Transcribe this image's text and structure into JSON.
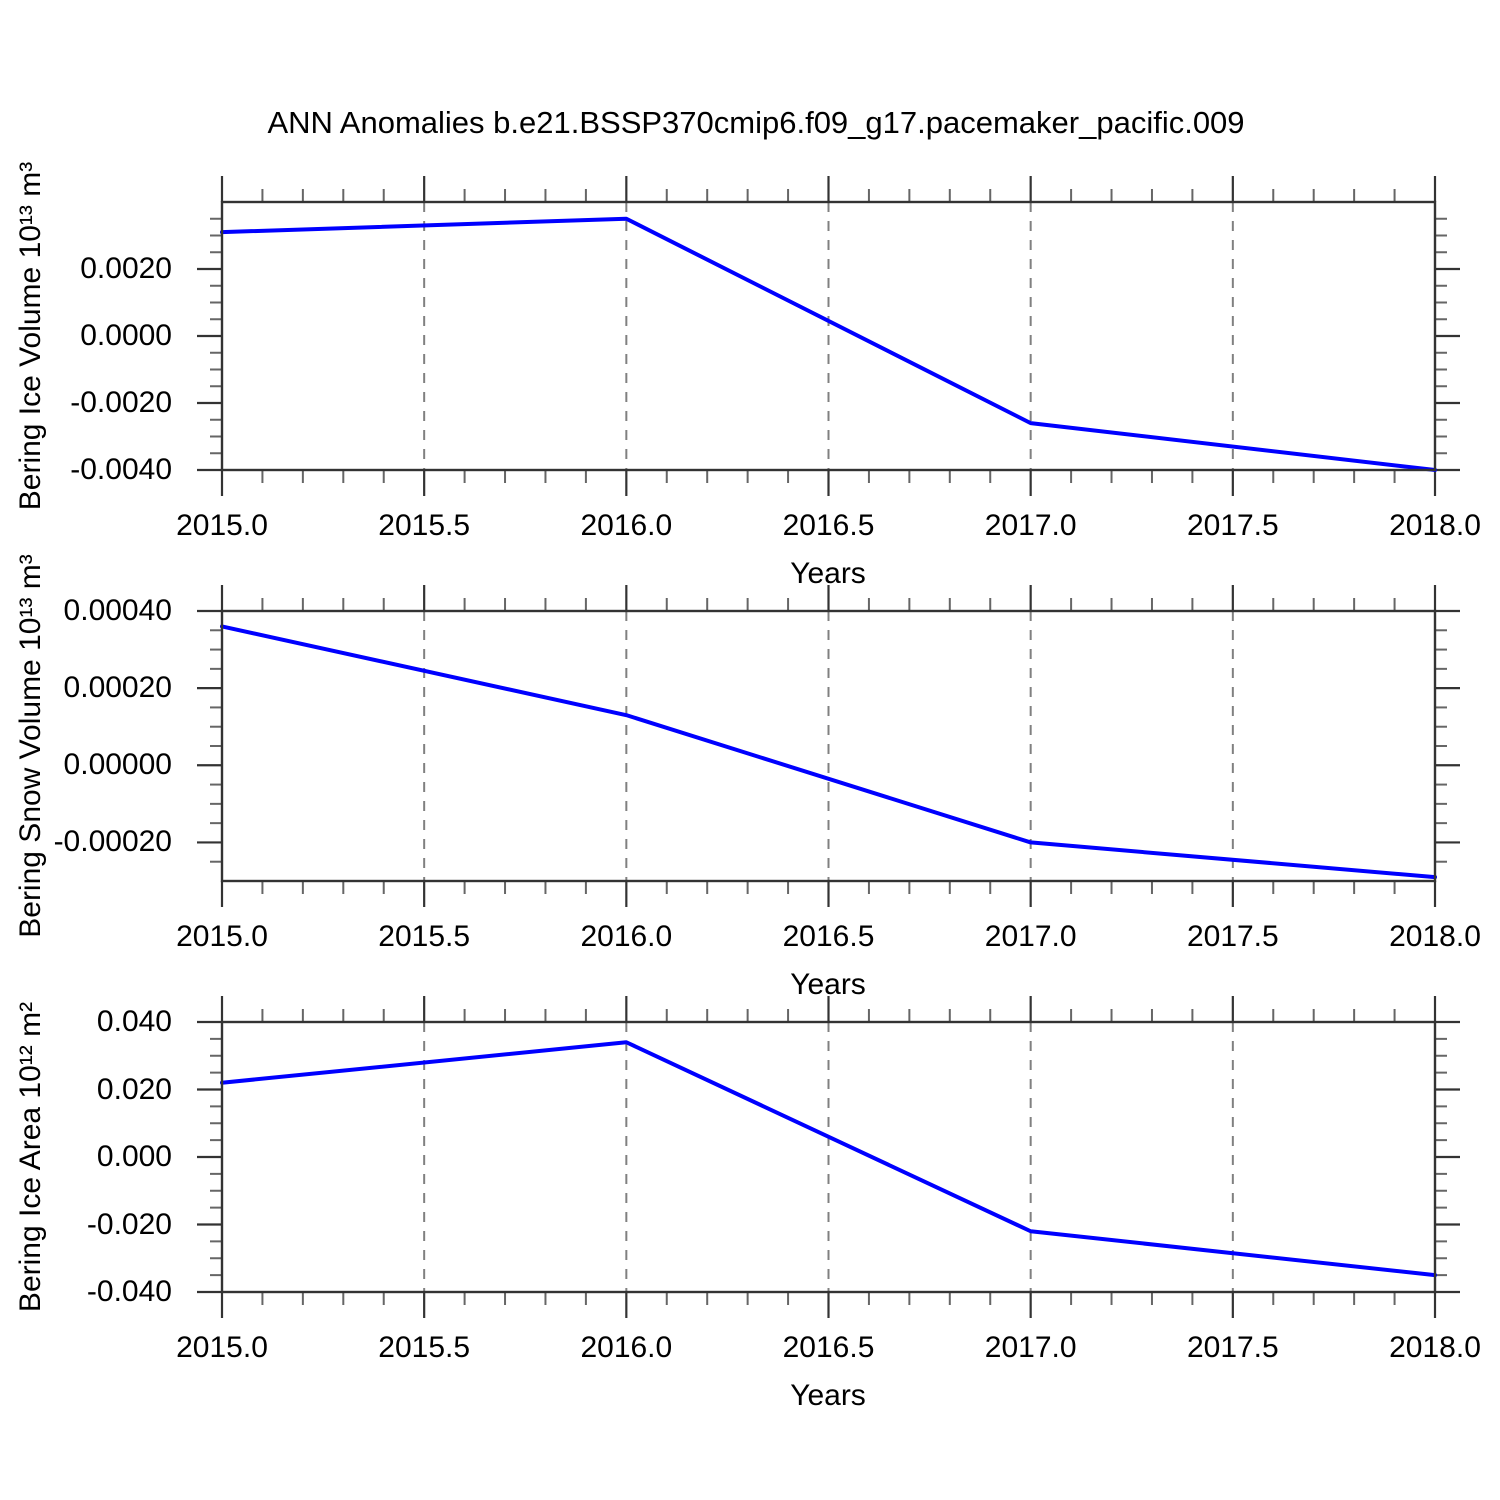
{
  "title": "ANN Anomalies b.e21.BSSP370cmip6.f09_g17.pacemaker_pacific.009",
  "line_color": "#0000ff",
  "grid_color": "#808080",
  "axis_color": "#333333",
  "chart_data": [
    {
      "type": "line",
      "ylabel": "Bering Ice Volume 10¹³ m³",
      "xlabel": "Years",
      "x": [
        2015.0,
        2016.0,
        2017.0,
        2018.0
      ],
      "y": [
        0.0031,
        0.0035,
        -0.0026,
        -0.004
      ],
      "xlim": [
        2015.0,
        2018.0
      ],
      "ylim": [
        -0.004,
        0.004
      ],
      "xticks": [
        {
          "label": "2015.0",
          "value": 2015.0
        },
        {
          "label": "2015.5",
          "value": 2015.5
        },
        {
          "label": "2016.0",
          "value": 2016.0
        },
        {
          "label": "2016.5",
          "value": 2016.5
        },
        {
          "label": "2017.0",
          "value": 2017.0
        },
        {
          "label": "2017.5",
          "value": 2017.5
        },
        {
          "label": "2018.0",
          "value": 2018.0
        }
      ],
      "yticks": [
        {
          "label": "0.0020",
          "value": 0.002
        },
        {
          "label": "0.0000",
          "value": 0.0
        },
        {
          "label": "-0.0020",
          "value": -0.002
        },
        {
          "label": "-0.0040",
          "value": -0.004
        }
      ],
      "xtick_minor_step": 0.1,
      "ytick_minor_step": 0.0005,
      "grid_x": [
        2015.5,
        2016.0,
        2016.5,
        2017.0,
        2017.5
      ],
      "grid_style": "vertical-dashed",
      "legend": "none"
    },
    {
      "type": "line",
      "ylabel": "Bering Snow Volume 10¹³ m³",
      "xlabel": "Years",
      "x": [
        2015.0,
        2016.0,
        2017.0,
        2018.0
      ],
      "y": [
        0.00036,
        0.00013,
        -0.0002,
        -0.00029
      ],
      "xlim": [
        2015.0,
        2018.0
      ],
      "ylim": [
        -0.0003,
        0.0004
      ],
      "xticks": [
        {
          "label": "2015.0",
          "value": 2015.0
        },
        {
          "label": "2015.5",
          "value": 2015.5
        },
        {
          "label": "2016.0",
          "value": 2016.0
        },
        {
          "label": "2016.5",
          "value": 2016.5
        },
        {
          "label": "2017.0",
          "value": 2017.0
        },
        {
          "label": "2017.5",
          "value": 2017.5
        },
        {
          "label": "2018.0",
          "value": 2018.0
        }
      ],
      "yticks": [
        {
          "label": "0.00040",
          "value": 0.0004
        },
        {
          "label": "0.00020",
          "value": 0.0002
        },
        {
          "label": "0.00000",
          "value": 0.0
        },
        {
          "label": "-0.00020",
          "value": -0.0002
        }
      ],
      "xtick_minor_step": 0.1,
      "ytick_minor_step": 5e-05,
      "grid_x": [
        2015.5,
        2016.0,
        2016.5,
        2017.0,
        2017.5
      ],
      "grid_style": "vertical-dashed",
      "legend": "none"
    },
    {
      "type": "line",
      "ylabel": "Bering Ice Area 10¹² m²",
      "xlabel": "Years",
      "x": [
        2015.0,
        2016.0,
        2017.0,
        2018.0
      ],
      "y": [
        0.022,
        0.034,
        -0.022,
        -0.035
      ],
      "xlim": [
        2015.0,
        2018.0
      ],
      "ylim": [
        -0.04,
        0.04
      ],
      "xticks": [
        {
          "label": "2015.0",
          "value": 2015.0
        },
        {
          "label": "2015.5",
          "value": 2015.5
        },
        {
          "label": "2016.0",
          "value": 2016.0
        },
        {
          "label": "2016.5",
          "value": 2016.5
        },
        {
          "label": "2017.0",
          "value": 2017.0
        },
        {
          "label": "2017.5",
          "value": 2017.5
        },
        {
          "label": "2018.0",
          "value": 2018.0
        }
      ],
      "yticks": [
        {
          "label": "0.040",
          "value": 0.04
        },
        {
          "label": "0.020",
          "value": 0.02
        },
        {
          "label": "0.000",
          "value": 0.0
        },
        {
          "label": "-0.020",
          "value": -0.02
        },
        {
          "label": "-0.040",
          "value": -0.04
        }
      ],
      "xtick_minor_step": 0.1,
      "ytick_minor_step": 0.005,
      "grid_x": [
        2015.5,
        2016.0,
        2016.5,
        2017.0,
        2017.5
      ],
      "grid_style": "vertical-dashed",
      "legend": "none"
    }
  ]
}
